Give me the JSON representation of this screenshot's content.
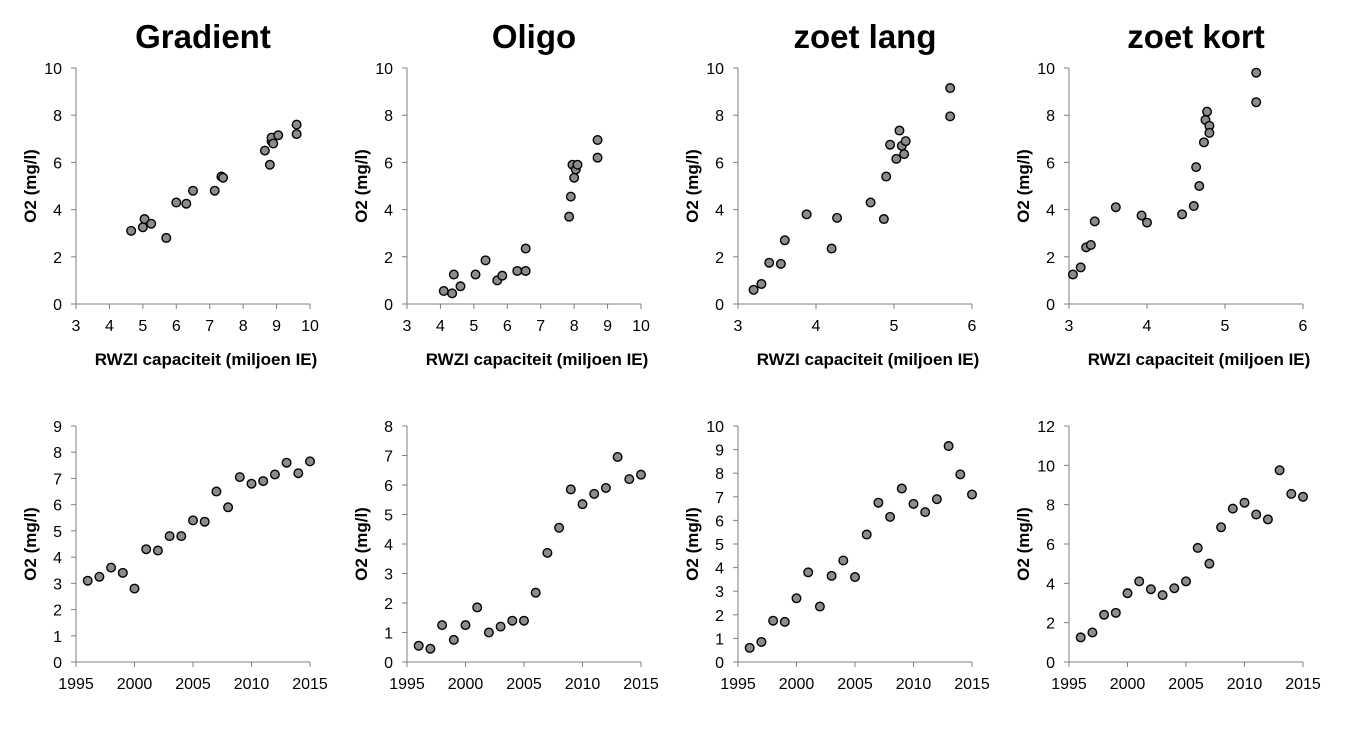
{
  "chart_data": [
    {
      "type": "scatter",
      "title": "Gradient",
      "xlabel": "RWZI capaciteit (miljoen IE)",
      "ylabel": "O2 (mg/l)",
      "xlim": [
        3,
        10
      ],
      "ylim": [
        0,
        10
      ],
      "xticks": [
        "3",
        "4",
        "5",
        "6",
        "7",
        "8",
        "9",
        "10"
      ],
      "yticks": [
        "0",
        "2",
        "4",
        "6",
        "8",
        "10"
      ],
      "grid": false,
      "legend": "none",
      "point_color": "#8c8c8c",
      "points": [
        [
          4.65,
          3.1
        ],
        [
          5.0,
          3.25
        ],
        [
          5.05,
          3.6
        ],
        [
          5.25,
          3.4
        ],
        [
          5.7,
          2.8
        ],
        [
          6.0,
          4.3
        ],
        [
          6.3,
          4.25
        ],
        [
          6.5,
          4.8
        ],
        [
          7.15,
          4.8
        ],
        [
          7.35,
          5.4
        ],
        [
          7.4,
          5.35
        ],
        [
          8.65,
          6.5
        ],
        [
          8.8,
          5.9
        ],
        [
          8.85,
          6.9
        ],
        [
          8.85,
          7.05
        ],
        [
          8.9,
          6.8
        ],
        [
          9.05,
          7.15
        ],
        [
          9.6,
          7.2
        ],
        [
          9.6,
          7.6
        ]
      ]
    },
    {
      "type": "scatter",
      "title": "Oligo",
      "xlabel": "RWZI capaciteit (miljoen IE)",
      "ylabel": "O2 (mg/l)",
      "xlim": [
        3,
        10
      ],
      "ylim": [
        0,
        10
      ],
      "xticks": [
        "3",
        "4",
        "5",
        "6",
        "7",
        "8",
        "9",
        "10"
      ],
      "yticks": [
        "0",
        "2",
        "4",
        "6",
        "8",
        "10"
      ],
      "grid": false,
      "legend": "none",
      "point_color": "#8c8c8c",
      "points": [
        [
          4.1,
          0.55
        ],
        [
          4.35,
          0.45
        ],
        [
          4.4,
          1.25
        ],
        [
          4.6,
          0.75
        ],
        [
          5.05,
          1.25
        ],
        [
          5.35,
          1.85
        ],
        [
          5.7,
          1.0
        ],
        [
          5.85,
          1.2
        ],
        [
          6.3,
          1.4
        ],
        [
          6.55,
          1.4
        ],
        [
          6.55,
          2.35
        ],
        [
          7.85,
          3.7
        ],
        [
          7.9,
          4.55
        ],
        [
          7.95,
          5.9
        ],
        [
          8.0,
          5.35
        ],
        [
          8.05,
          5.7
        ],
        [
          8.1,
          5.9
        ],
        [
          8.7,
          6.95
        ],
        [
          8.7,
          6.2
        ]
      ]
    },
    {
      "type": "scatter",
      "title": "zoet lang",
      "xlabel": "RWZI capaciteit (miljoen IE)",
      "ylabel": "O2 (mg/l)",
      "xlim": [
        3,
        6
      ],
      "ylim": [
        0,
        10
      ],
      "xticks": [
        "3",
        "4",
        "5",
        "6"
      ],
      "yticks": [
        "0",
        "2",
        "4",
        "6",
        "8",
        "10"
      ],
      "grid": false,
      "legend": "none",
      "point_color": "#8c8c8c",
      "points": [
        [
          3.2,
          0.6
        ],
        [
          3.3,
          0.85
        ],
        [
          3.4,
          1.75
        ],
        [
          3.55,
          1.7
        ],
        [
          3.6,
          2.7
        ],
        [
          3.88,
          3.8
        ],
        [
          4.2,
          2.35
        ],
        [
          4.27,
          3.65
        ],
        [
          4.7,
          4.3
        ],
        [
          4.87,
          3.6
        ],
        [
          4.9,
          5.4
        ],
        [
          4.95,
          6.75
        ],
        [
          5.03,
          6.15
        ],
        [
          5.07,
          7.35
        ],
        [
          5.1,
          6.7
        ],
        [
          5.13,
          6.35
        ],
        [
          5.15,
          6.9
        ],
        [
          5.72,
          9.15
        ],
        [
          5.72,
          7.95
        ]
      ]
    },
    {
      "type": "scatter",
      "title": "zoet kort",
      "xlabel": "RWZI capaciteit (miljoen IE)",
      "ylabel": "O2 (mg/l)",
      "xlim": [
        3,
        6
      ],
      "ylim": [
        0,
        10
      ],
      "xticks": [
        "3",
        "4",
        "5",
        "6"
      ],
      "yticks": [
        "0",
        "2",
        "4",
        "6",
        "8",
        "10"
      ],
      "grid": false,
      "legend": "none",
      "point_color": "#8c8c8c",
      "points": [
        [
          3.05,
          1.25
        ],
        [
          3.15,
          1.55
        ],
        [
          3.22,
          2.4
        ],
        [
          3.28,
          2.5
        ],
        [
          3.33,
          3.5
        ],
        [
          3.6,
          4.1
        ],
        [
          3.93,
          3.75
        ],
        [
          4.0,
          3.45
        ],
        [
          4.45,
          3.8
        ],
        [
          4.6,
          4.15
        ],
        [
          4.63,
          5.8
        ],
        [
          4.67,
          5.0
        ],
        [
          4.73,
          6.85
        ],
        [
          4.75,
          7.8
        ],
        [
          4.77,
          8.15
        ],
        [
          4.8,
          7.55
        ],
        [
          4.8,
          7.25
        ],
        [
          5.4,
          9.8
        ],
        [
          5.4,
          8.55
        ]
      ]
    },
    {
      "type": "scatter",
      "title": "",
      "xlabel": "",
      "ylabel": "O2 (mg/l)",
      "xlim": [
        1995,
        2015
      ],
      "ylim": [
        0,
        9
      ],
      "xticks": [
        "1995",
        "2000",
        "2005",
        "2010",
        "2015"
      ],
      "yticks": [
        "0",
        "1",
        "2",
        "3",
        "4",
        "5",
        "6",
        "7",
        "8",
        "9"
      ],
      "grid": false,
      "legend": "none",
      "point_color": "#8c8c8c",
      "points": [
        [
          1996,
          3.1
        ],
        [
          1997,
          3.25
        ],
        [
          1998,
          3.6
        ],
        [
          1999,
          3.4
        ],
        [
          2000,
          2.8
        ],
        [
          2001,
          4.3
        ],
        [
          2002,
          4.25
        ],
        [
          2003,
          4.8
        ],
        [
          2004,
          4.8
        ],
        [
          2005,
          5.4
        ],
        [
          2006,
          5.35
        ],
        [
          2007,
          6.5
        ],
        [
          2008,
          5.9
        ],
        [
          2009,
          7.05
        ],
        [
          2010,
          6.8
        ],
        [
          2011,
          6.9
        ],
        [
          2012,
          7.15
        ],
        [
          2013,
          7.6
        ],
        [
          2014,
          7.2
        ],
        [
          2015,
          7.65
        ]
      ]
    },
    {
      "type": "scatter",
      "title": "",
      "xlabel": "",
      "ylabel": "O2 (mg/l)",
      "xlim": [
        1995,
        2015
      ],
      "ylim": [
        0,
        8
      ],
      "xticks": [
        "1995",
        "2000",
        "2005",
        "2010",
        "2015"
      ],
      "yticks": [
        "0",
        "1",
        "2",
        "3",
        "4",
        "5",
        "6",
        "7",
        "8"
      ],
      "grid": false,
      "legend": "none",
      "point_color": "#8c8c8c",
      "points": [
        [
          1996,
          0.55
        ],
        [
          1997,
          0.45
        ],
        [
          1998,
          1.25
        ],
        [
          1999,
          0.75
        ],
        [
          2000,
          1.25
        ],
        [
          2001,
          1.85
        ],
        [
          2002,
          1.0
        ],
        [
          2003,
          1.2
        ],
        [
          2004,
          1.4
        ],
        [
          2005,
          1.4
        ],
        [
          2006,
          2.35
        ],
        [
          2007,
          3.7
        ],
        [
          2008,
          4.55
        ],
        [
          2009,
          5.85
        ],
        [
          2010,
          5.35
        ],
        [
          2011,
          5.7
        ],
        [
          2012,
          5.9
        ],
        [
          2013,
          6.95
        ],
        [
          2014,
          6.2
        ],
        [
          2015,
          6.35
        ]
      ]
    },
    {
      "type": "scatter",
      "title": "",
      "xlabel": "",
      "ylabel": "O2 (mg/l)",
      "xlim": [
        1995,
        2015
      ],
      "ylim": [
        0,
        10
      ],
      "xticks": [
        "1995",
        "2000",
        "2005",
        "2010",
        "2015"
      ],
      "yticks": [
        "0",
        "1",
        "2",
        "3",
        "4",
        "5",
        "6",
        "7",
        "8",
        "9",
        "10"
      ],
      "grid": false,
      "legend": "none",
      "point_color": "#8c8c8c",
      "points": [
        [
          1996,
          0.6
        ],
        [
          1997,
          0.85
        ],
        [
          1998,
          1.75
        ],
        [
          1999,
          1.7
        ],
        [
          2000,
          2.7
        ],
        [
          2001,
          3.8
        ],
        [
          2002,
          2.35
        ],
        [
          2003,
          3.65
        ],
        [
          2004,
          4.3
        ],
        [
          2005,
          3.6
        ],
        [
          2006,
          5.4
        ],
        [
          2007,
          6.75
        ],
        [
          2008,
          6.15
        ],
        [
          2009,
          7.35
        ],
        [
          2010,
          6.7
        ],
        [
          2011,
          6.35
        ],
        [
          2012,
          6.9
        ],
        [
          2013,
          9.15
        ],
        [
          2014,
          7.95
        ],
        [
          2015,
          7.1
        ]
      ]
    },
    {
      "type": "scatter",
      "title": "",
      "xlabel": "",
      "ylabel": "O2 (mg/l)",
      "xlim": [
        1995,
        2015
      ],
      "ylim": [
        0,
        12
      ],
      "xticks": [
        "1995",
        "2000",
        "2005",
        "2010",
        "2015"
      ],
      "yticks": [
        "0",
        "2",
        "4",
        "6",
        "8",
        "10",
        "12"
      ],
      "grid": false,
      "legend": "none",
      "point_color": "#8c8c8c",
      "points": [
        [
          1996,
          1.25
        ],
        [
          1997,
          1.5
        ],
        [
          1998,
          2.4
        ],
        [
          1999,
          2.5
        ],
        [
          2000,
          3.5
        ],
        [
          2001,
          4.1
        ],
        [
          2002,
          3.7
        ],
        [
          2003,
          3.4
        ],
        [
          2004,
          3.75
        ],
        [
          2005,
          4.1
        ],
        [
          2006,
          5.8
        ],
        [
          2007,
          5.0
        ],
        [
          2008,
          6.85
        ],
        [
          2009,
          7.8
        ],
        [
          2010,
          8.1
        ],
        [
          2011,
          7.5
        ],
        [
          2012,
          7.25
        ],
        [
          2013,
          9.75
        ],
        [
          2014,
          8.55
        ],
        [
          2015,
          8.4
        ]
      ]
    }
  ]
}
